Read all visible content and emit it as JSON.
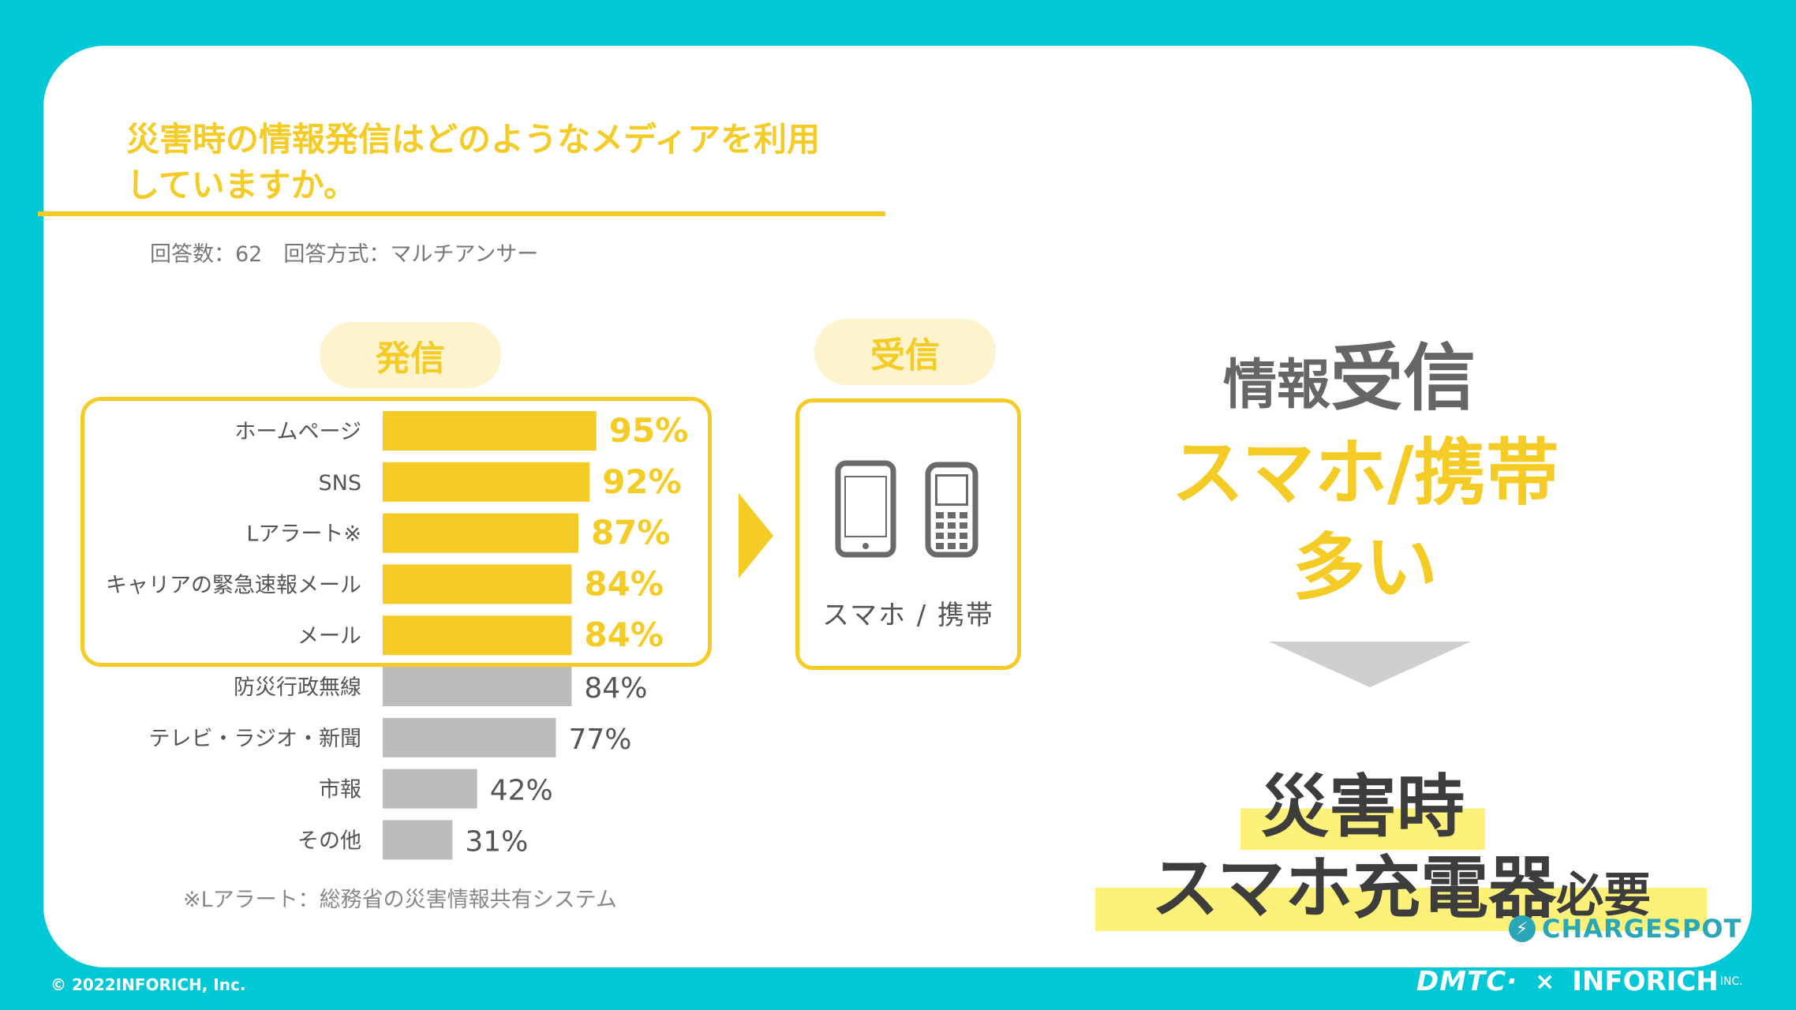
{
  "title": "災害時の情報発信はどのようなメディアを利用していますか。",
  "meta": "回答数：62　回答方式：マルチアンサー",
  "pill_send": "発信",
  "pill_recv": "受信",
  "recv_label": "スマホ / 携帯",
  "footnote": "※Lアラート：総務省の災害情報共有システム",
  "right": {
    "line1_small": "情報",
    "line1_big": "受信",
    "line2": "スマホ/携帯",
    "line3": "多い",
    "hl1": "災害時",
    "hl2_big": "スマホ充電器",
    "hl2_small": "必要"
  },
  "chargespot": "CHARGESPOT",
  "copyright": "© 2022INFORICH, Inc.",
  "footer": {
    "dmtc": "DMTC·",
    "times": "×",
    "inforich": "INFORICH",
    "inc": "INC."
  },
  "colors": {
    "accent": "#f5cc25",
    "gray_bar": "#bcbcbc",
    "background": "#00c8d7"
  },
  "chart_data": {
    "type": "bar",
    "orientation": "horizontal",
    "categories": [
      "ホームページ",
      "SNS",
      "Lアラート※",
      "キャリアの緊急速報メール",
      "メール",
      "防災行政無線",
      "テレビ・ラジオ・新聞",
      "市報",
      "その他"
    ],
    "values": [
      95,
      92,
      87,
      84,
      84,
      84,
      77,
      42,
      31
    ],
    "labels": [
      "95%",
      "92%",
      "87%",
      "84%",
      "84%",
      "84%",
      "77%",
      "42%",
      "31%"
    ],
    "highlighted": [
      true,
      true,
      true,
      true,
      true,
      false,
      false,
      false,
      false
    ],
    "unit": "%",
    "xlim": [
      0,
      100
    ]
  }
}
